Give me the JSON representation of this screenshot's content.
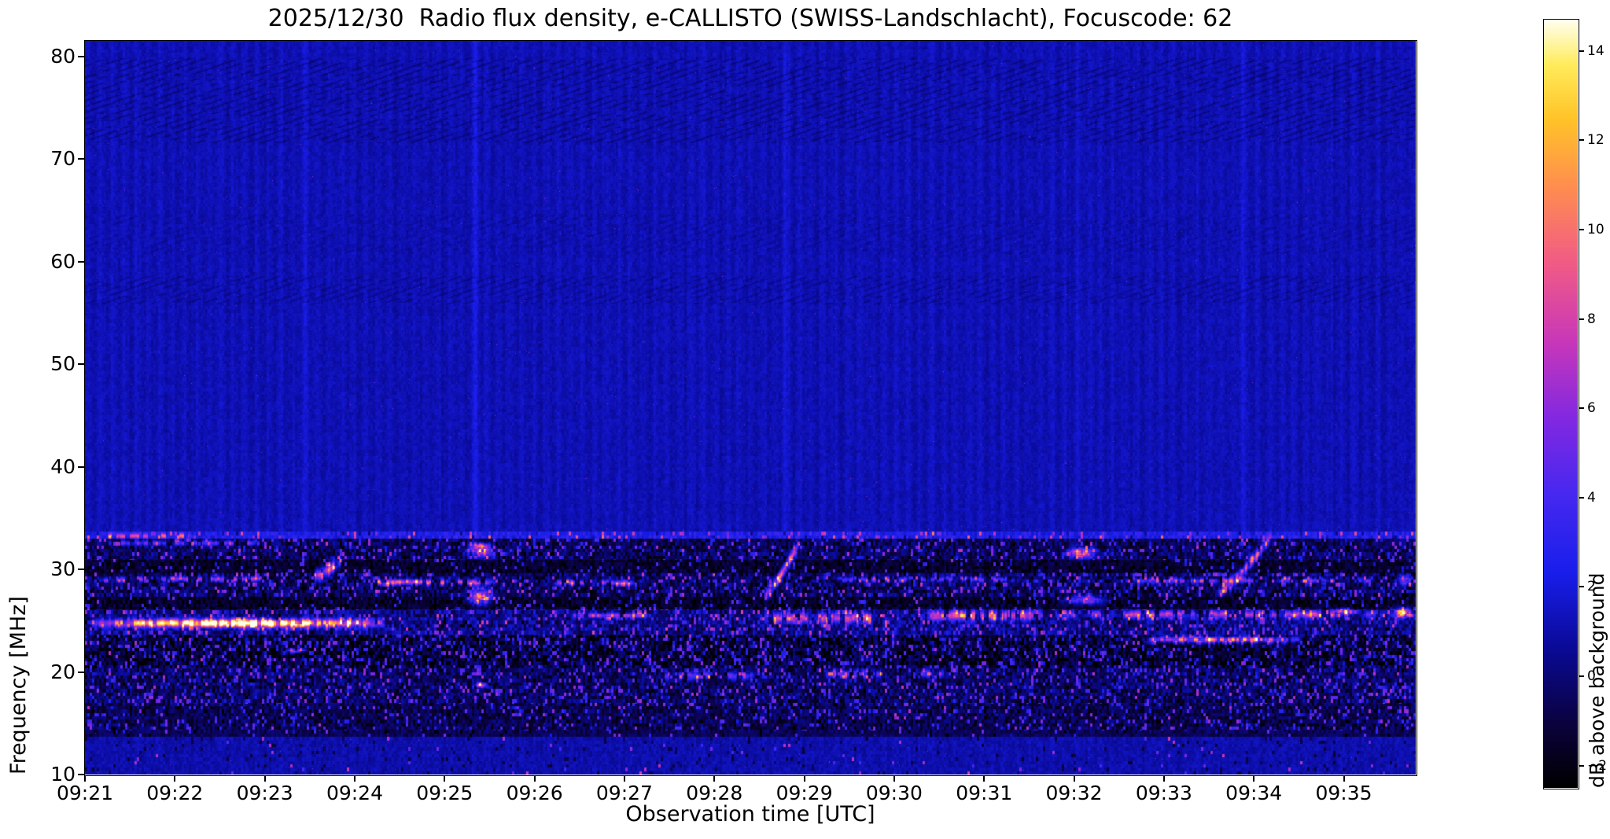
{
  "chart_data": {
    "type": "heatmap",
    "title": "2025/12/30  Radio flux density, e-CALLISTO (SWISS-Landschlacht), Focuscode: 62",
    "xlabel": "Observation time [UTC]",
    "ylabel": "Frequency [MHz]",
    "colorbar_label": "dB above background",
    "x_start": "09:21",
    "x_end": "09:35:46",
    "duration_min": 14.8,
    "x_ticks": [
      "09:21",
      "09:22",
      "09:23",
      "09:24",
      "09:25",
      "09:26",
      "09:27",
      "09:28",
      "09:29",
      "09:30",
      "09:31",
      "09:32",
      "09:33",
      "09:34",
      "09:35"
    ],
    "y_ticks": [
      10,
      20,
      30,
      40,
      50,
      60,
      70,
      80
    ],
    "ylim": [
      10,
      81.5
    ],
    "clim": [
      -2.5,
      14.7
    ],
    "colorbar_ticks": [
      -2,
      0,
      2,
      4,
      6,
      8,
      10,
      12,
      14
    ],
    "colorbar_tick_labels": [
      "−2",
      "0",
      "2",
      "4",
      "6",
      "8",
      "10",
      "12",
      "14"
    ],
    "background_level_db": 1.2,
    "grid": false,
    "colormap": {
      "name": "gnuplot2-like",
      "stops": [
        [
          0.0,
          0,
          0,
          0
        ],
        [
          0.08,
          10,
          2,
          60
        ],
        [
          0.18,
          10,
          10,
          150
        ],
        [
          0.28,
          25,
          30,
          235
        ],
        [
          0.38,
          70,
          40,
          240
        ],
        [
          0.48,
          130,
          40,
          225
        ],
        [
          0.58,
          200,
          55,
          185
        ],
        [
          0.68,
          240,
          90,
          135
        ],
        [
          0.78,
          255,
          140,
          80
        ],
        [
          0.87,
          255,
          195,
          40
        ],
        [
          0.94,
          255,
          235,
          90
        ],
        [
          1.0,
          255,
          255,
          240
        ]
      ]
    },
    "bands": [
      {
        "f0": 10.0,
        "f1": 13.7,
        "level": 1.05,
        "noise": 0.45,
        "speckle": 0.05
      },
      {
        "f0": 13.7,
        "f1": 14.3,
        "level": -0.6,
        "noise": 0.7,
        "speckle": 0.1
      },
      {
        "f0": 14.3,
        "f1": 16.9,
        "level": -0.7,
        "noise": 1.2,
        "speckle": 0.45
      },
      {
        "f0": 16.9,
        "f1": 20.4,
        "level": -0.4,
        "noise": 1.5,
        "speckle": 0.6
      },
      {
        "f0": 20.4,
        "f1": 23.6,
        "level": -1.2,
        "noise": 1.7,
        "speckle": 0.7
      },
      {
        "f0": 23.6,
        "f1": 26.1,
        "level": 0.3,
        "noise": 1.5,
        "speckle": 0.6
      },
      {
        "f0": 26.1,
        "f1": 27.3,
        "level": -1.5,
        "noise": 1.0,
        "speckle": 0.35
      },
      {
        "f0": 27.3,
        "f1": 29.6,
        "level": -0.5,
        "noise": 1.6,
        "speckle": 0.6
      },
      {
        "f0": 29.6,
        "f1": 30.9,
        "level": -1.4,
        "noise": 0.9,
        "speckle": 0.3
      },
      {
        "f0": 30.9,
        "f1": 33.0,
        "level": -0.5,
        "noise": 1.4,
        "speckle": 0.5
      },
      {
        "f0": 33.0,
        "f1": 33.7,
        "level": 2.6,
        "noise": 0.9,
        "speckle": 0.3
      },
      {
        "f0": 33.7,
        "f1": 81.5,
        "level": 1.2,
        "noise": 0.35,
        "speckle": 0.0
      }
    ],
    "bursts": [
      {
        "type": "streak",
        "t0": 0.05,
        "t1": 3.35,
        "f0": 24.1,
        "f1": 25.4,
        "peak": 13.5
      },
      {
        "type": "dashes",
        "t0": 0.1,
        "t1": 2.1,
        "f0": 28.7,
        "f1": 29.4,
        "peak": 6
      },
      {
        "type": "dashes",
        "t0": 0.2,
        "t1": 2.0,
        "f0": 32.2,
        "f1": 32.9,
        "peak": 4.5
      },
      {
        "type": "dashes",
        "t0": 0.2,
        "t1": 1.2,
        "f0": 33.0,
        "f1": 33.5,
        "peak": 6
      },
      {
        "type": "blob",
        "t0": 2.2,
        "t1": 2.5,
        "f0": 21.7,
        "f1": 22.4,
        "peak": 7
      },
      {
        "type": "drift",
        "t0": 2.55,
        "t1": 2.85,
        "f0": 29.3,
        "f1": 30.8,
        "peak": 9
      },
      {
        "type": "dashes",
        "t0": 3.1,
        "t1": 4.6,
        "f0": 28.3,
        "f1": 29.2,
        "peak": 7.5
      },
      {
        "type": "blob",
        "t0": 4.2,
        "t1": 4.6,
        "f0": 26.2,
        "f1": 28.3,
        "peak": 10.5
      },
      {
        "type": "blob",
        "t0": 4.2,
        "t1": 4.6,
        "f0": 30.9,
        "f1": 32.6,
        "peak": 9
      },
      {
        "type": "blob",
        "t0": 4.3,
        "t1": 4.5,
        "f0": 18.3,
        "f1": 19.1,
        "peak": 9
      },
      {
        "type": "blob",
        "t0": 4.25,
        "t1": 4.55,
        "f0": 31.9,
        "f1": 32.7,
        "peak": 7
      },
      {
        "type": "dashes",
        "t0": 5.2,
        "t1": 6.15,
        "f0": 28.3,
        "f1": 29.1,
        "peak": 6
      },
      {
        "type": "dashes",
        "t0": 5.4,
        "t1": 6.3,
        "f0": 25.1,
        "f1": 25.9,
        "peak": 5
      },
      {
        "type": "dashes",
        "t0": 6.3,
        "t1": 7.5,
        "f0": 19.0,
        "f1": 20.2,
        "peak": 4.5
      },
      {
        "type": "drift",
        "t0": 7.55,
        "t1": 7.95,
        "f0": 27.4,
        "f1": 32.6,
        "peak": 8.5
      },
      {
        "type": "dashes",
        "t0": 7.5,
        "t1": 9.1,
        "f0": 24.4,
        "f1": 26.1,
        "peak": 6.5
      },
      {
        "type": "dashes",
        "t0": 8.2,
        "t1": 9.6,
        "f0": 19.2,
        "f1": 20.4,
        "peak": 5.5
      },
      {
        "type": "dashes",
        "t0": 8.3,
        "t1": 10.4,
        "f0": 28.6,
        "f1": 29.4,
        "peak": 5
      },
      {
        "type": "dashes",
        "t0": 9.3,
        "t1": 10.7,
        "f0": 24.7,
        "f1": 26.3,
        "peak": 7
      },
      {
        "type": "blob",
        "t0": 10.85,
        "t1": 11.3,
        "f0": 30.8,
        "f1": 32.4,
        "peak": 10
      },
      {
        "type": "blob",
        "t0": 10.8,
        "t1": 11.45,
        "f0": 26.4,
        "f1": 27.6,
        "peak": 8
      },
      {
        "type": "dashes",
        "t0": 10.7,
        "t1": 14.5,
        "f0": 25.0,
        "f1": 26.2,
        "peak": 6
      },
      {
        "type": "streak",
        "t0": 11.75,
        "t1": 13.55,
        "f0": 22.7,
        "f1": 23.6,
        "peak": 9.5
      },
      {
        "type": "drift",
        "t0": 12.6,
        "t1": 13.2,
        "f0": 27.7,
        "f1": 33.2,
        "peak": 7.5
      },
      {
        "type": "dashes",
        "t0": 11.5,
        "t1": 14.4,
        "f0": 28.5,
        "f1": 29.3,
        "peak": 5
      },
      {
        "type": "blob",
        "t0": 13.8,
        "t1": 14.2,
        "f0": 25.5,
        "f1": 26.3,
        "peak": 8
      },
      {
        "type": "blob",
        "t0": 14.5,
        "t1": 14.8,
        "f0": 25.0,
        "f1": 26.5,
        "peak": 12
      },
      {
        "type": "blob",
        "t0": 14.55,
        "t1": 14.8,
        "f0": 28.3,
        "f1": 29.6,
        "peak": 6.5
      }
    ],
    "vertical_lines": [
      {
        "t": 2.45,
        "amp": 0.5,
        "w": 0.03
      },
      {
        "t": 4.35,
        "amp": 0.9,
        "w": 0.035
      },
      {
        "t": 7.78,
        "amp": 0.7,
        "w": 0.03
      },
      {
        "t": 11.05,
        "amp": 0.5,
        "w": 0.03
      },
      {
        "t": 12.88,
        "amp": 0.6,
        "w": 0.03
      }
    ],
    "texture_zones": [
      {
        "f0": 71.5,
        "f1": 79.8,
        "amp": 0.6
      },
      {
        "f0": 55.8,
        "f1": 58.6,
        "amp": 0.45
      },
      {
        "f0": 60.8,
        "f1": 64.6,
        "amp": 0.25
      }
    ]
  }
}
